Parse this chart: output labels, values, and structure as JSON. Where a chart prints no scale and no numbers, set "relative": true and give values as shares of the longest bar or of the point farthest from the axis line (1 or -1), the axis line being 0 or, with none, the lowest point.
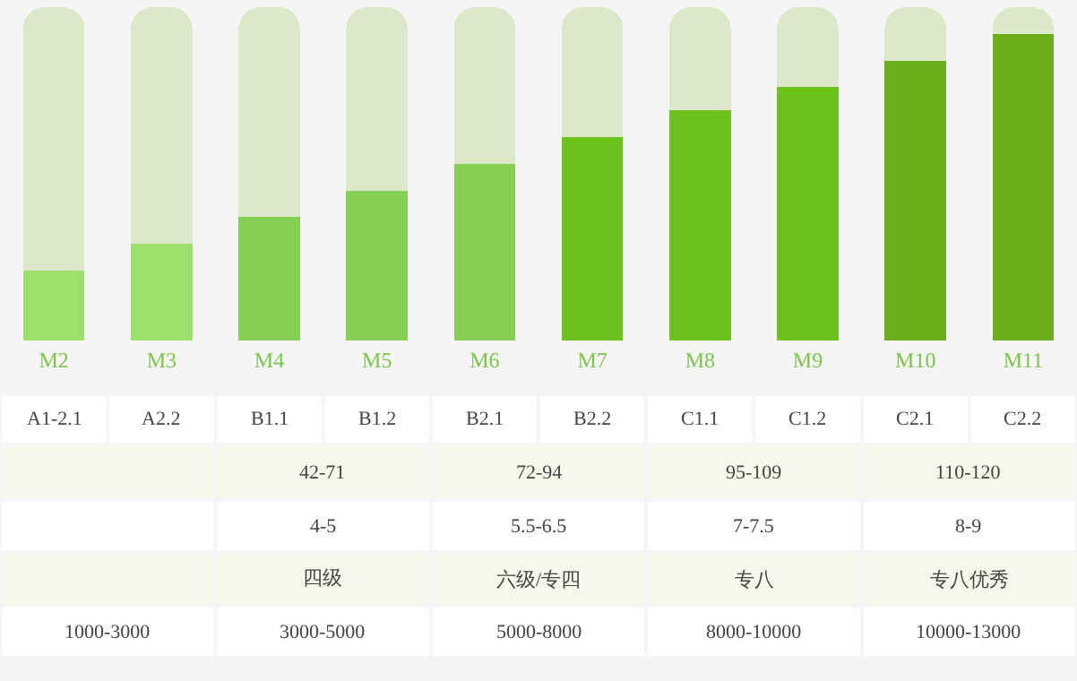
{
  "chart_data": {
    "type": "bar",
    "relative": true,
    "stacked": true,
    "categories": [
      "M2",
      "M3",
      "M4",
      "M5",
      "M6",
      "M7",
      "M8",
      "M9",
      "M10",
      "M11"
    ],
    "series": [
      {
        "colors": [
          "#9ee06e",
          "#9ee06e",
          "#86cf55",
          "#86cf55",
          "#86cf55",
          "#6cc21b",
          "#6cc21b",
          "#6cc21b",
          "#6aaf1a",
          "#6aaf1a"
        ],
        "values": [
          0.21,
          0.29,
          0.37,
          0.45,
          0.53,
          0.61,
          0.69,
          0.76,
          0.84,
          0.92
        ]
      },
      {
        "color": "#dce8c9",
        "values": [
          0.79,
          0.71,
          0.63,
          0.55,
          0.47,
          0.39,
          0.31,
          0.24,
          0.16,
          0.08
        ]
      }
    ],
    "annotations": [
      "A1-2.1",
      "A2.2",
      "B1.1",
      "B1.2",
      "B2.1",
      "B2.2",
      "C1.1",
      "C1.2",
      "C2.1",
      "C2.2",
      "42-71",
      "72-94",
      "95-109",
      "110-120",
      "4-5",
      "5.5-6.5",
      "7-7.5",
      "8-9",
      "四级",
      "六级/专四",
      "专八",
      "专八优秀",
      "1000-3000",
      "3000-5000",
      "5000-8000",
      "8000-10000",
      "10000-13000"
    ]
  }
}
